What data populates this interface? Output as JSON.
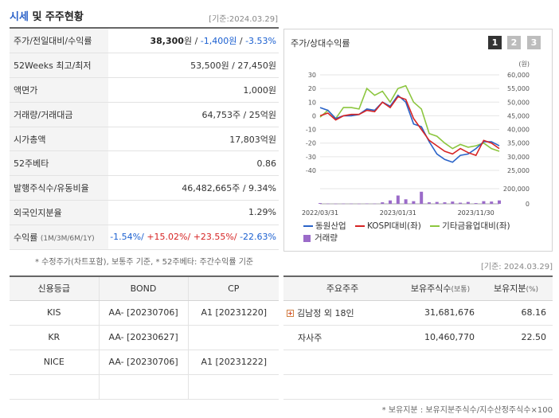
{
  "header": {
    "title_main": "시세",
    "title_rest": " 및 주주현황",
    "date": "[기준:2024.03.29]"
  },
  "info_rows": [
    {
      "label": "주가/전일대비/수익률",
      "price": "38,300",
      "unit": "원",
      "sep1": " / ",
      "change": "-1,400원",
      "sep2": " / ",
      "rate": "-3.53%"
    },
    {
      "label": "52Weeks 최고/최저",
      "value": "53,500원 / 27,450원"
    },
    {
      "label": "액면가",
      "value": "1,000원"
    },
    {
      "label": "거래량/거래대금",
      "value": "64,753주 / 25억원"
    },
    {
      "label": "시가총액",
      "value": "17,803억원"
    },
    {
      "label": "52주베타",
      "value": "0.86"
    },
    {
      "label": "발행주식수/유동비율",
      "value": "46,482,665주 / 9.34%"
    },
    {
      "label": "외국인지분율",
      "value": "1.29%"
    },
    {
      "label": "수익률",
      "label_small": "(1M/3M/6M/1Y)",
      "r1": "-1.54%/",
      "r2": " +15.02%/",
      "r3": " +23.55%/",
      "r4": " -22.63%"
    }
  ],
  "footnote1": "* 수정주가(차트포함), 보통주 기준, * 52주베타: 주간수익률 기준",
  "chart_panel": {
    "title": "주가/상대수익률",
    "tabs": [
      "1",
      "2",
      "3"
    ],
    "y_unit": "(원)"
  },
  "chart_data": {
    "type": "line",
    "x": [
      "2022/03/31",
      "2022/05",
      "2022/06",
      "2022/07",
      "2022/08",
      "2022/09",
      "2022/10",
      "2022/11",
      "2022/12",
      "2023/01",
      "2023/01/31",
      "2023/03",
      "2023/04",
      "2023/05",
      "2023/06",
      "2023/07",
      "2023/08",
      "2023/09",
      "2023/10",
      "2023/11",
      "2023/11/30",
      "2024/01",
      "2024/02",
      "2024/03"
    ],
    "x_tick_labels": [
      "2022/03/31",
      "2023/01/31",
      "2023/11/30"
    ],
    "y_left": {
      "ticks": [
        30,
        20,
        10,
        0,
        -10,
        -20,
        -30,
        -40
      ],
      "range": [
        -40,
        30
      ]
    },
    "y_right": {
      "ticks": [
        "60,000",
        "55,000",
        "50,000",
        "45,000",
        "40,000",
        "35,000",
        "30,000",
        "25,000"
      ],
      "range": [
        25000,
        60000
      ]
    },
    "volume_axis": {
      "ticks": [
        "200,000",
        "0"
      ],
      "range": [
        0,
        200000
      ]
    },
    "series": [
      {
        "name": "동원산업",
        "color": "#2a63c8",
        "axis": "right",
        "values": [
          48000,
          47000,
          44000,
          45000,
          45000,
          45500,
          47500,
          47000,
          50000,
          48500,
          52500,
          50000,
          42000,
          41000,
          35500,
          31000,
          29000,
          28000,
          30500,
          31000,
          33000,
          35500,
          35500,
          34000
        ]
      },
      {
        "name": "KOSPI대비(좌)",
        "color": "#d62424",
        "axis": "left",
        "values": [
          0,
          2,
          -3,
          0,
          1,
          1,
          4,
          3,
          10,
          6,
          14,
          12,
          -2,
          -10,
          -18,
          -22,
          -26,
          -28,
          -24,
          -27,
          -29,
          -18,
          -20,
          -24
        ]
      },
      {
        "name": "기타금융업대비(좌)",
        "color": "#8cc63f",
        "axis": "left",
        "values": [
          -1,
          4,
          -2,
          6,
          6,
          5,
          20,
          15,
          18,
          10,
          20,
          22,
          10,
          5,
          -13,
          -15,
          -20,
          -24,
          -21,
          -23,
          -22,
          -20,
          -24,
          -26
        ]
      }
    ],
    "volume": {
      "name": "거래량",
      "color": "#9b6bc9",
      "values": [
        10000,
        3000,
        2000,
        3000,
        3000,
        2000,
        4000,
        3000,
        20000,
        45000,
        110000,
        60000,
        35000,
        160000,
        20000,
        25000,
        20000,
        30000,
        15000,
        25000,
        10000,
        35000,
        30000,
        45000
      ]
    },
    "grid": true
  },
  "date2": "[기준: 2024.03.29]",
  "credit": {
    "headers": [
      "신용등급",
      "BOND",
      "CP"
    ],
    "rows": [
      [
        "KIS",
        "AA-  [20230706]",
        "A1  [20231220]"
      ],
      [
        "KR",
        "AA-  [20230627]",
        ""
      ],
      [
        "NICE",
        "AA-  [20230706]",
        "A1  [20231222]"
      ],
      [
        "",
        "",
        ""
      ]
    ]
  },
  "holders": {
    "headers": {
      "name": "주요주주",
      "shares": "보유주식수",
      "shares_small": "(보통)",
      "pct": "보유지분",
      "pct_small": "(%)"
    },
    "rows": [
      {
        "plus": "+",
        "name": "김남정 외 18인",
        "shares": "31,681,676",
        "pct": "68.16"
      },
      {
        "plus": "",
        "name": "자사주",
        "shares": "10,460,770",
        "pct": "22.50"
      },
      {
        "plus": "",
        "name": "",
        "shares": "",
        "pct": ""
      },
      {
        "plus": "",
        "name": "",
        "shares": "",
        "pct": ""
      }
    ]
  },
  "footnote2": "* 보유지분 : 보유지분주식수/지수산정주식수×100"
}
